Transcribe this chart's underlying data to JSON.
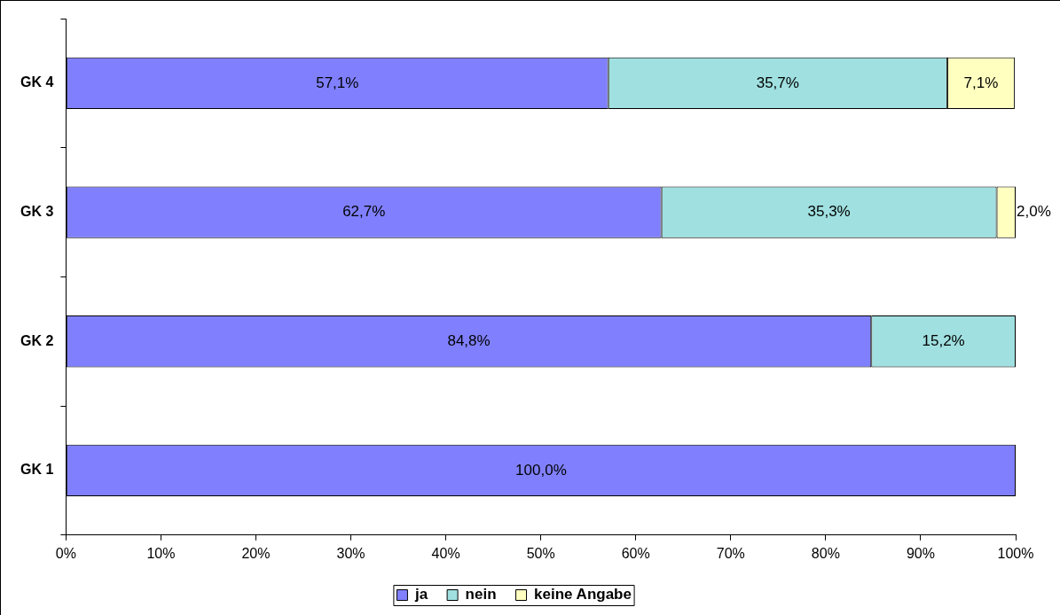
{
  "chart_data": {
    "type": "bar",
    "orientation": "horizontal",
    "stacked": true,
    "categories": [
      "GK 4",
      "GK 3",
      "GK 2",
      "GK 1"
    ],
    "series": [
      {
        "name": "ja",
        "color": "#8080ff",
        "values": [
          57.1,
          62.7,
          84.8,
          100.0
        ],
        "value_labels": [
          "57,1%",
          "62,7%",
          "84,8%",
          "100,0%"
        ]
      },
      {
        "name": "nein",
        "color": "#a0e0e0",
        "values": [
          35.7,
          35.3,
          15.2,
          null
        ],
        "value_labels": [
          "35,7%",
          "35,3%",
          "15,2%",
          null
        ]
      },
      {
        "name": "keine Angabe",
        "color": "#ffffc0",
        "values": [
          7.1,
          2.0,
          null,
          null
        ],
        "value_labels": [
          "7,1%",
          "2,0%",
          null,
          null
        ]
      }
    ],
    "xlim": [
      0,
      100
    ],
    "xticks": [
      {
        "value": 0,
        "label": "0%"
      },
      {
        "value": 10,
        "label": "10%"
      },
      {
        "value": 20,
        "label": "20%"
      },
      {
        "value": 30,
        "label": "30%"
      },
      {
        "value": 40,
        "label": "40%"
      },
      {
        "value": 50,
        "label": "50%"
      },
      {
        "value": 60,
        "label": "60%"
      },
      {
        "value": 70,
        "label": "70%"
      },
      {
        "value": 80,
        "label": "80%"
      },
      {
        "value": 90,
        "label": "90%"
      },
      {
        "value": 100,
        "label": "100%"
      }
    ],
    "grid": false,
    "legend": "bottom"
  }
}
